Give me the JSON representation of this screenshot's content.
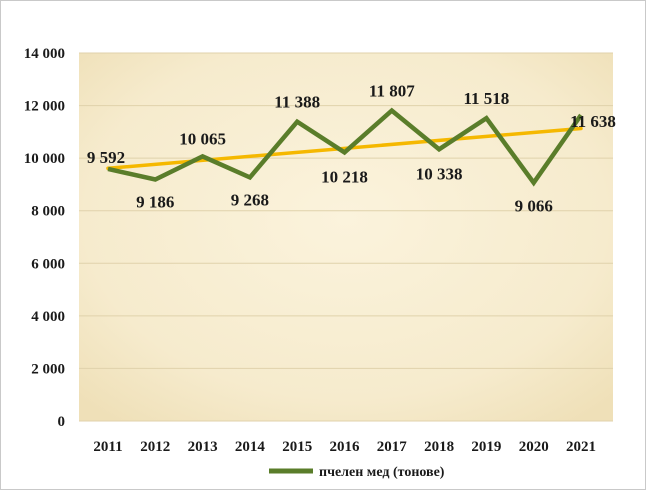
{
  "chart_data": {
    "type": "line",
    "title": "",
    "xlabel": "",
    "ylabel": "",
    "categories": [
      "2011",
      "2012",
      "2013",
      "2014",
      "2015",
      "2016",
      "2017",
      "2018",
      "2019",
      "2020",
      "2021"
    ],
    "series": [
      {
        "name": "пчелен мед (тонове)",
        "values": [
          9592,
          9186,
          10065,
          9268,
          11388,
          10218,
          11807,
          10338,
          11518,
          9066,
          11638
        ],
        "color": "#5a7d2a"
      }
    ],
    "data_labels": [
      "9 592",
      "9 186",
      "10 065",
      "9 268",
      "11 388",
      "10 218",
      "11 807",
      "10 338",
      "11 518",
      "9 066",
      "11 638"
    ],
    "trendline": {
      "type": "linear",
      "color": "#f5b800"
    },
    "ylim": [
      0,
      14000
    ],
    "yticks": [
      0,
      2000,
      4000,
      6000,
      8000,
      10000,
      12000,
      14000
    ],
    "ytick_labels": [
      "0",
      "2 000",
      "4 000",
      "6 000",
      "8 000",
      "10 000",
      "12 000",
      "14 000"
    ],
    "grid": true,
    "legend_position": "bottom",
    "plot_background": "#f6ebcd"
  }
}
